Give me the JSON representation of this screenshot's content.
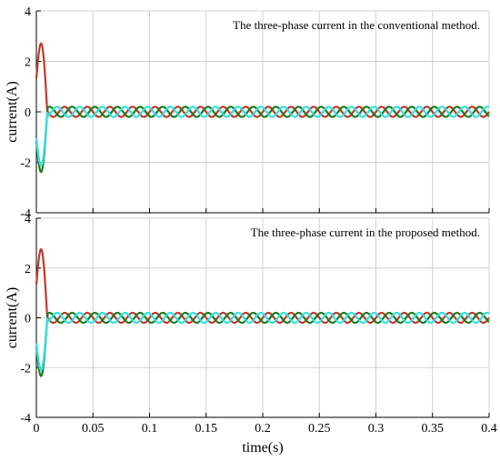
{
  "chart_data": [
    {
      "type": "line",
      "title": "The three-phase current in the conventional method.",
      "xlabel": "",
      "ylabel": "current(A)",
      "xlim": [
        0,
        0.4
      ],
      "ylim": [
        -4,
        4
      ],
      "xticks": [
        0,
        0.05,
        0.1,
        0.15,
        0.2,
        0.25,
        0.3,
        0.35,
        0.4
      ],
      "xtick_labels": [
        "",
        "",
        "",
        "",
        "",
        "",
        "",
        "",
        ""
      ],
      "yticks": [
        -4,
        -2,
        0,
        2,
        4
      ],
      "ytick_labels": [
        "-4",
        "-2",
        "0",
        "2",
        "4"
      ],
      "grid": true,
      "frequency_hz": 50,
      "steady_amplitude": 0.2,
      "transient_end": 0.01,
      "transient_peaks": [
        3.3,
        -2.9,
        -2.6
      ],
      "series": [
        {
          "color": "#c0392b",
          "phase_deg": 0
        },
        {
          "color": "#1e7b1e",
          "phase_deg": -120
        },
        {
          "color": "#33e0e0",
          "phase_deg": 120
        }
      ]
    },
    {
      "type": "line",
      "title": "The three-phase current in the proposed method.",
      "xlabel": "time(s)",
      "ylabel": "current(A)",
      "xlim": [
        0,
        0.4
      ],
      "ylim": [
        -4,
        4
      ],
      "xticks": [
        0,
        0.05,
        0.1,
        0.15,
        0.2,
        0.25,
        0.3,
        0.35,
        0.4
      ],
      "xtick_labels": [
        "0",
        "0.05",
        "0.1",
        "0.15",
        "0.2",
        "0.25",
        "0.3",
        "0.35",
        "0.4"
      ],
      "yticks": [
        -4,
        -2,
        0,
        2,
        4
      ],
      "ytick_labels": [
        "-4",
        "-2",
        "0",
        "2",
        "4"
      ],
      "grid": true,
      "frequency_hz": 50,
      "steady_amplitude": 0.2,
      "transient_end": 0.01,
      "transient_peaks": [
        3.35,
        -2.85,
        -2.55
      ],
      "series": [
        {
          "color": "#c0392b",
          "phase_deg": 0
        },
        {
          "color": "#1e7b1e",
          "phase_deg": -120
        },
        {
          "color": "#33e0e0",
          "phase_deg": 120
        }
      ]
    }
  ]
}
